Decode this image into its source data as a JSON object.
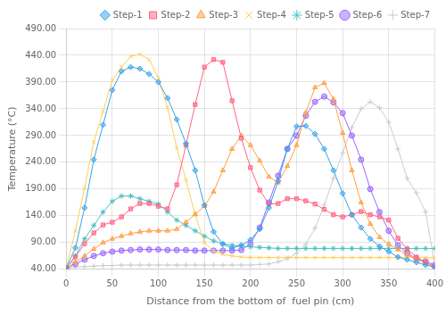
{
  "chart_data": {
    "type": "line",
    "xlabel": "Distance from the bottom of  fuel pin (cm)",
    "ylabel": "Temperature (°C)",
    "x": [
      0,
      10,
      20,
      30,
      40,
      50,
      60,
      70,
      80,
      90,
      100,
      110,
      120,
      130,
      140,
      150,
      160,
      170,
      180,
      190,
      200,
      210,
      220,
      230,
      240,
      250,
      260,
      270,
      280,
      290,
      300,
      310,
      320,
      330,
      340,
      350,
      360,
      370,
      380,
      390,
      400
    ],
    "series": [
      {
        "name": "Step-1",
        "marker": "diamond",
        "values": [
          42,
          80,
          155,
          245,
          310,
          375,
          410,
          418,
          415,
          405,
          390,
          360,
          320,
          275,
          225,
          160,
          110,
          87,
          80,
          85,
          95,
          115,
          155,
          205,
          265,
          307,
          308,
          293,
          265,
          225,
          182,
          142,
          118,
          97,
          83,
          73,
          63,
          58,
          53,
          48,
          44
        ]
      },
      {
        "name": "Step-2",
        "marker": "square",
        "values": [
          42,
          63,
          88,
          108,
          123,
          128,
          138,
          153,
          163,
          163,
          158,
          153,
          198,
          272,
          348,
          418,
          432,
          427,
          355,
          285,
          230,
          188,
          162,
          163,
          172,
          172,
          168,
          162,
          152,
          142,
          138,
          142,
          148,
          142,
          138,
          132,
          98,
          78,
          63,
          53,
          44
        ]
      },
      {
        "name": "Step-3",
        "marker": "triangle",
        "values": [
          42,
          53,
          65,
          78,
          90,
          97,
          102,
          107,
          110,
          112,
          112,
          112,
          115,
          128,
          143,
          158,
          185,
          225,
          265,
          290,
          272,
          243,
          213,
          202,
          233,
          272,
          333,
          380,
          388,
          358,
          295,
          225,
          165,
          125,
          100,
          87,
          77,
          67,
          58,
          52,
          46
        ]
      },
      {
        "name": "Step-4",
        "marker": "x",
        "values": [
          42,
          112,
          192,
          278,
          335,
          393,
          418,
          438,
          442,
          432,
          398,
          342,
          267,
          207,
          142,
          90,
          73,
          68,
          65,
          63,
          62,
          62,
          62,
          62,
          62,
          62,
          62,
          62,
          62,
          62,
          62,
          62,
          62,
          62,
          62,
          62,
          62,
          62,
          62,
          62,
          62
        ]
      },
      {
        "name": "Step-5",
        "marker": "star",
        "values": [
          42,
          65,
          97,
          122,
          147,
          167,
          177,
          177,
          172,
          167,
          162,
          147,
          132,
          122,
          112,
          102,
          93,
          88,
          85,
          83,
          82,
          81,
          80,
          79,
          79,
          79,
          79,
          79,
          79,
          79,
          79,
          79,
          79,
          79,
          79,
          79,
          79,
          79,
          79,
          79,
          79
        ]
      },
      {
        "name": "Step-6",
        "marker": "circle",
        "values": [
          42,
          50,
          58,
          65,
          70,
          73,
          75,
          76,
          77,
          77,
          77,
          76,
          76,
          76,
          75,
          75,
          75,
          75,
          75,
          76,
          88,
          118,
          165,
          215,
          265,
          290,
          327,
          353,
          363,
          352,
          332,
          290,
          245,
          190,
          147,
          112,
          85,
          70,
          60,
          55,
          48
        ]
      },
      {
        "name": "Step-7",
        "marker": "plus",
        "values": [
          42,
          44,
          45,
          46,
          47,
          47,
          48,
          48,
          48,
          48,
          48,
          48,
          48,
          48,
          48,
          48,
          48,
          48,
          48,
          48,
          48,
          49,
          50,
          54,
          60,
          70,
          87,
          117,
          160,
          210,
          258,
          305,
          340,
          353,
          342,
          315,
          265,
          210,
          183,
          147,
          48
        ]
      }
    ],
    "xlim": [
      0,
      400
    ],
    "ylim": [
      40,
      490
    ],
    "xticks": [
      0,
      50,
      100,
      150,
      200,
      250,
      300,
      350,
      400
    ],
    "yticks": [
      {
        "value": 40,
        "label": "40.00"
      },
      {
        "value": 90,
        "label": "90.00"
      },
      {
        "value": 140,
        "label": "140.00"
      },
      {
        "value": 190,
        "label": "190.00"
      },
      {
        "value": 240,
        "label": "240.00"
      },
      {
        "value": 290,
        "label": "290.00"
      },
      {
        "value": 340,
        "label": "340.00"
      },
      {
        "value": 390,
        "label": "390.00"
      },
      {
        "value": 440,
        "label": "440.00"
      },
      {
        "value": 490,
        "label": "490.00"
      }
    ],
    "grid": true,
    "legend": "upper right"
  }
}
